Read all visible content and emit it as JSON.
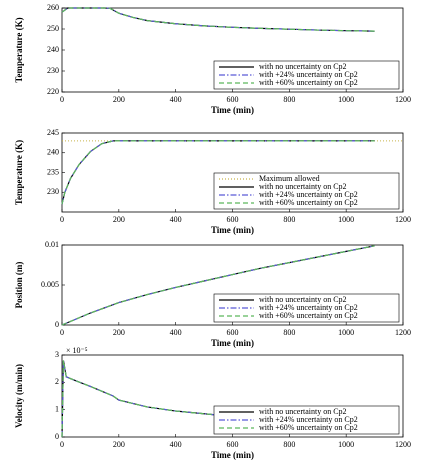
{
  "chart_data": [
    {
      "type": "line",
      "ylabel": "Temperature (K)",
      "xlabel": "Time (min)",
      "x": [
        0,
        20,
        50,
        100,
        150,
        170,
        200,
        250,
        300,
        400,
        500,
        600,
        700,
        800,
        900,
        1000,
        1100
      ],
      "series": [
        {
          "name": "with no uncertainty on Cp2",
          "color": "#000000",
          "style": "solid",
          "values": [
            258,
            260,
            260,
            260,
            260,
            259.8,
            257.5,
            255.5,
            254,
            252.5,
            251.5,
            250.8,
            250.3,
            249.9,
            249.5,
            249.2,
            249
          ]
        },
        {
          "name": "with +24% uncertainty on Cp2",
          "color": "#5b5bd6",
          "style": "dashdot",
          "values": [
            258,
            260,
            260,
            260,
            260,
            259.8,
            257.5,
            255.5,
            254,
            252.5,
            251.5,
            250.8,
            250.3,
            249.9,
            249.5,
            249.2,
            249
          ]
        },
        {
          "name": "with +60% uncertainty on Cp2",
          "color": "#5cb85c",
          "style": "dashed",
          "values": [
            258,
            260,
            260,
            260,
            260,
            259.8,
            257.5,
            255.5,
            254,
            252.5,
            251.5,
            250.8,
            250.3,
            249.9,
            249.5,
            249.2,
            249
          ]
        }
      ],
      "xlim": [
        0,
        1200
      ],
      "xticks": [
        0,
        200,
        400,
        600,
        800,
        1000,
        1200
      ],
      "ylim": [
        220,
        260
      ],
      "yticks": [
        220,
        230,
        240,
        250,
        260
      ],
      "legend": "lower right"
    },
    {
      "type": "line",
      "ylabel": "Temperature (K)",
      "xlabel": "Time (min)",
      "x": [
        0,
        10,
        30,
        60,
        100,
        140,
        180,
        300,
        500,
        700,
        900,
        1100
      ],
      "reference_line": {
        "name": "Maximum allowed",
        "value": 243,
        "color": "#c8b44a"
      },
      "series": [
        {
          "name": "with no uncertainty on Cp2",
          "color": "#000000",
          "style": "solid",
          "values": [
            227,
            230,
            233.5,
            237,
            240.3,
            242.3,
            243,
            243,
            243,
            243,
            243,
            243
          ]
        },
        {
          "name": "with +24% uncertainty on Cp2",
          "color": "#5b5bd6",
          "style": "dashdot",
          "values": [
            227,
            230,
            233.5,
            237,
            240.3,
            242.3,
            243,
            243,
            243,
            243,
            243,
            243
          ]
        },
        {
          "name": "with +60% uncertainty on Cp2",
          "color": "#5cb85c",
          "style": "dashed",
          "values": [
            227,
            230,
            233.5,
            237,
            240.3,
            242.3,
            243,
            243,
            243,
            243,
            243,
            243
          ]
        }
      ],
      "xlim": [
        0,
        1200
      ],
      "xticks": [
        0,
        200,
        400,
        600,
        800,
        1000,
        1200
      ],
      "ylim": [
        225,
        245
      ],
      "yticks": [
        230,
        235,
        240,
        245
      ],
      "legend": "lower right"
    },
    {
      "type": "line",
      "ylabel": "Position (m)",
      "xlabel": "Time (min)",
      "x": [
        0,
        100,
        200,
        300,
        400,
        500,
        600,
        700,
        800,
        900,
        1000,
        1100
      ],
      "series": [
        {
          "name": "with no uncertainty on Cp2",
          "color": "#000000",
          "style": "solid",
          "values": [
            0,
            0.0015,
            0.0028,
            0.0038,
            0.0047,
            0.0055,
            0.0063,
            0.0071,
            0.0078,
            0.0085,
            0.0092,
            0.0099
          ]
        },
        {
          "name": "with +24% uncertainty on Cp2",
          "color": "#5b5bd6",
          "style": "dashdot",
          "values": [
            0,
            0.0015,
            0.0028,
            0.0038,
            0.0047,
            0.0055,
            0.0063,
            0.0071,
            0.0078,
            0.0085,
            0.0092,
            0.0099
          ]
        },
        {
          "name": "with +60% uncertainty on Cp2",
          "color": "#5cb85c",
          "style": "dashed",
          "values": [
            0,
            0.0015,
            0.0028,
            0.0038,
            0.0047,
            0.0055,
            0.0063,
            0.0071,
            0.0078,
            0.0085,
            0.0092,
            0.0099
          ]
        }
      ],
      "xlim": [
        0,
        1200
      ],
      "xticks": [
        0,
        200,
        400,
        600,
        800,
        1000,
        1200
      ],
      "ylim": [
        0,
        0.01
      ],
      "yticks": [
        0,
        0.005,
        0.01
      ],
      "legend": "lower right"
    },
    {
      "type": "line",
      "ylabel": "Velocity (m/min)",
      "xlabel": "Time (min)",
      "annotation": "× 10⁻⁵",
      "x": [
        0,
        5,
        15,
        50,
        100,
        180,
        200,
        300,
        400,
        500,
        600,
        700,
        800,
        900,
        1000,
        1100
      ],
      "series": [
        {
          "name": "with no uncertainty on Cp2",
          "color": "#000000",
          "style": "solid",
          "values": [
            0,
            2.8,
            2.2,
            2.05,
            1.85,
            1.5,
            1.35,
            1.1,
            0.95,
            0.85,
            0.75,
            0.68,
            0.62,
            0.57,
            0.53,
            0.5
          ]
        },
        {
          "name": "with +24% uncertainty on Cp2",
          "color": "#5b5bd6",
          "style": "dashdot",
          "values": [
            0,
            2.8,
            2.2,
            2.05,
            1.85,
            1.5,
            1.35,
            1.1,
            0.95,
            0.85,
            0.75,
            0.68,
            0.62,
            0.57,
            0.53,
            0.5
          ]
        },
        {
          "name": "with +60% uncertainty on Cp2",
          "color": "#5cb85c",
          "style": "dashed",
          "values": [
            0,
            2.8,
            2.2,
            2.05,
            1.85,
            1.5,
            1.35,
            1.1,
            0.95,
            0.85,
            0.75,
            0.68,
            0.62,
            0.57,
            0.53,
            0.5
          ]
        }
      ],
      "xlim": [
        0,
        1200
      ],
      "xticks": [
        0,
        200,
        400,
        600,
        800,
        1000,
        1200
      ],
      "ylim": [
        0,
        3
      ],
      "yticks": [
        0,
        1,
        2,
        3
      ],
      "legend": "lower right"
    }
  ]
}
